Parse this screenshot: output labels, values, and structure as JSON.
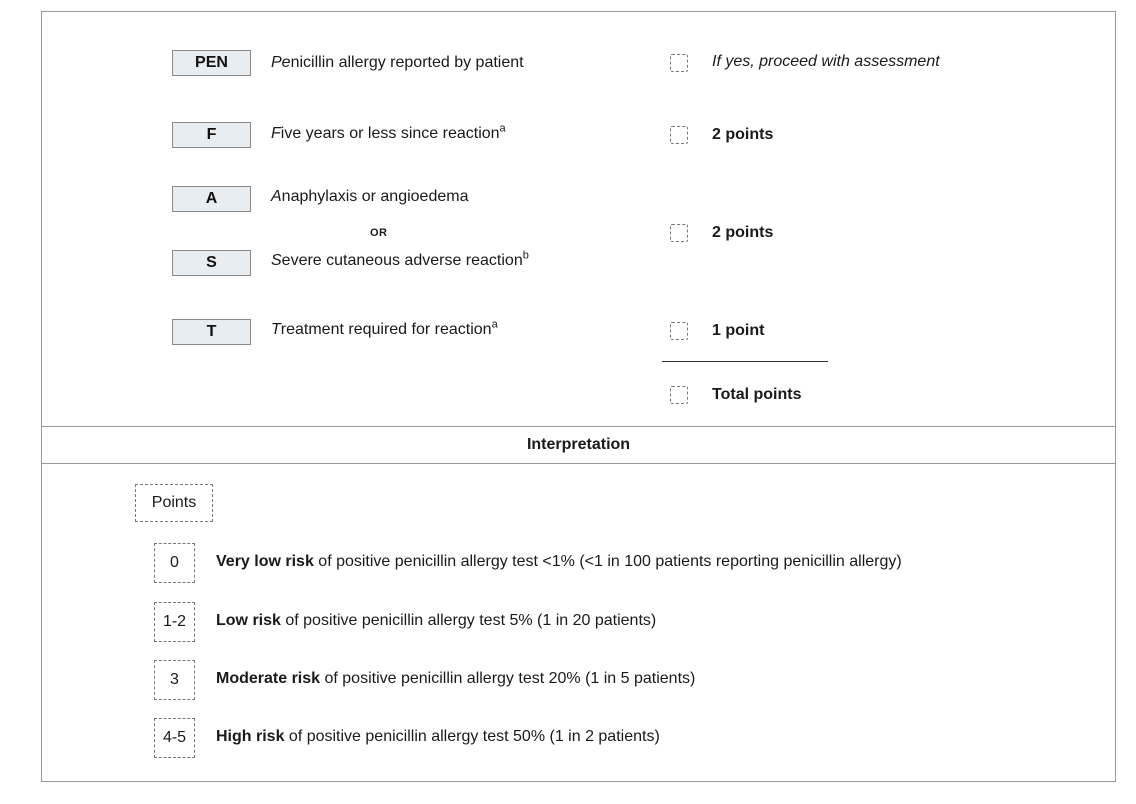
{
  "criteria": [
    {
      "letter": "PEN",
      "first": "Pe",
      "rest": "nicillin allergy reported by patient",
      "sup": "",
      "points": "If yes, proceed with assessment"
    },
    {
      "letter": "F",
      "first": "F",
      "rest": "ive years or less since reaction",
      "sup": "a",
      "points": "2 points"
    },
    {
      "letter": "A",
      "first": "A",
      "rest": "naphylaxis or angioedema",
      "sup": ""
    },
    {
      "or_label": "OR"
    },
    {
      "letter": "S",
      "first": "S",
      "rest": "evere cutaneous adverse reaction",
      "sup": "b",
      "points": "2 points"
    },
    {
      "letter": "T",
      "first": "T",
      "rest": "reatment required for reaction",
      "sup": "a",
      "points": "1 point"
    }
  ],
  "total_label": "Total points",
  "interpretation": {
    "title": "Interpretation",
    "points_header": "Points",
    "rows": [
      {
        "score": "0",
        "risk": "Very low risk",
        "text": " of positive penicillin allergy test <1% (<1 in 100 patients reporting penicillin allergy)"
      },
      {
        "score": "1-2",
        "risk": "Low risk",
        "text": " of positive penicillin allergy test 5% (1 in 20 patients)"
      },
      {
        "score": "3",
        "risk": "Moderate risk",
        "text": " of positive penicillin allergy test 20% (1 in 5 patients)"
      },
      {
        "score": "4-5",
        "risk": "High risk",
        "text": " of positive penicillin allergy test 50% (1 in 2 patients)"
      }
    ]
  },
  "colors": {
    "letter_box_bg": "#e8edf2",
    "border": "#9a9a9a"
  }
}
